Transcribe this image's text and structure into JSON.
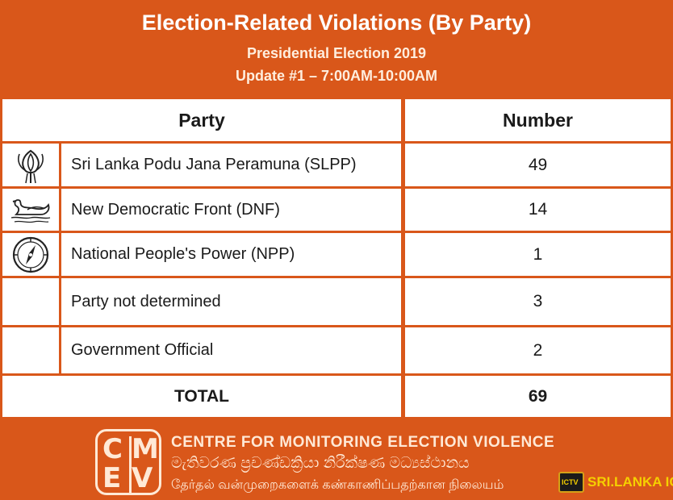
{
  "header": {
    "title": "Election-Related Violations (By Party)",
    "subtitle": "Presidential Election 2019",
    "update": "Update #1 – 7:00AM-10:00AM"
  },
  "table": {
    "columns": [
      "Party",
      "Number"
    ],
    "rows": [
      {
        "icon": "lotus-bud-icon",
        "party": "Sri Lanka Podu Jana Peramuna (SLPP)",
        "number": "49"
      },
      {
        "icon": "swan-icon",
        "party": "New Democratic Front (DNF)",
        "number": "14"
      },
      {
        "icon": "compass-icon",
        "party": "National People's Power (NPP)",
        "number": "1"
      },
      {
        "icon": "",
        "party": "Party not determined",
        "number": "3"
      },
      {
        "icon": "",
        "party": "Government Official",
        "number": "2"
      }
    ],
    "total_label": "TOTAL",
    "total_value": "69"
  },
  "footer": {
    "logo_letters": [
      "C",
      "M",
      "E",
      "V"
    ],
    "org_english": "CENTRE FOR MONITORING ELECTION VIOLENCE",
    "org_sinhala": "මැතිවරණ ප්‍රචණ්ඩක්‍රියා නිරීක්ෂණ මධ්‍යස්ථානය",
    "org_tamil": "தேர்தல் வன்முறைகளைக் கண்காணிப்பதற்கான நிலையம்"
  },
  "watermark": {
    "badge_text": "ICTV",
    "brand_text": "SRI.LANKA ICTV"
  },
  "colors": {
    "background": "#d9571a",
    "cell": "#ffffff",
    "header_text": "#ffffff",
    "brand": "#f5d000"
  }
}
